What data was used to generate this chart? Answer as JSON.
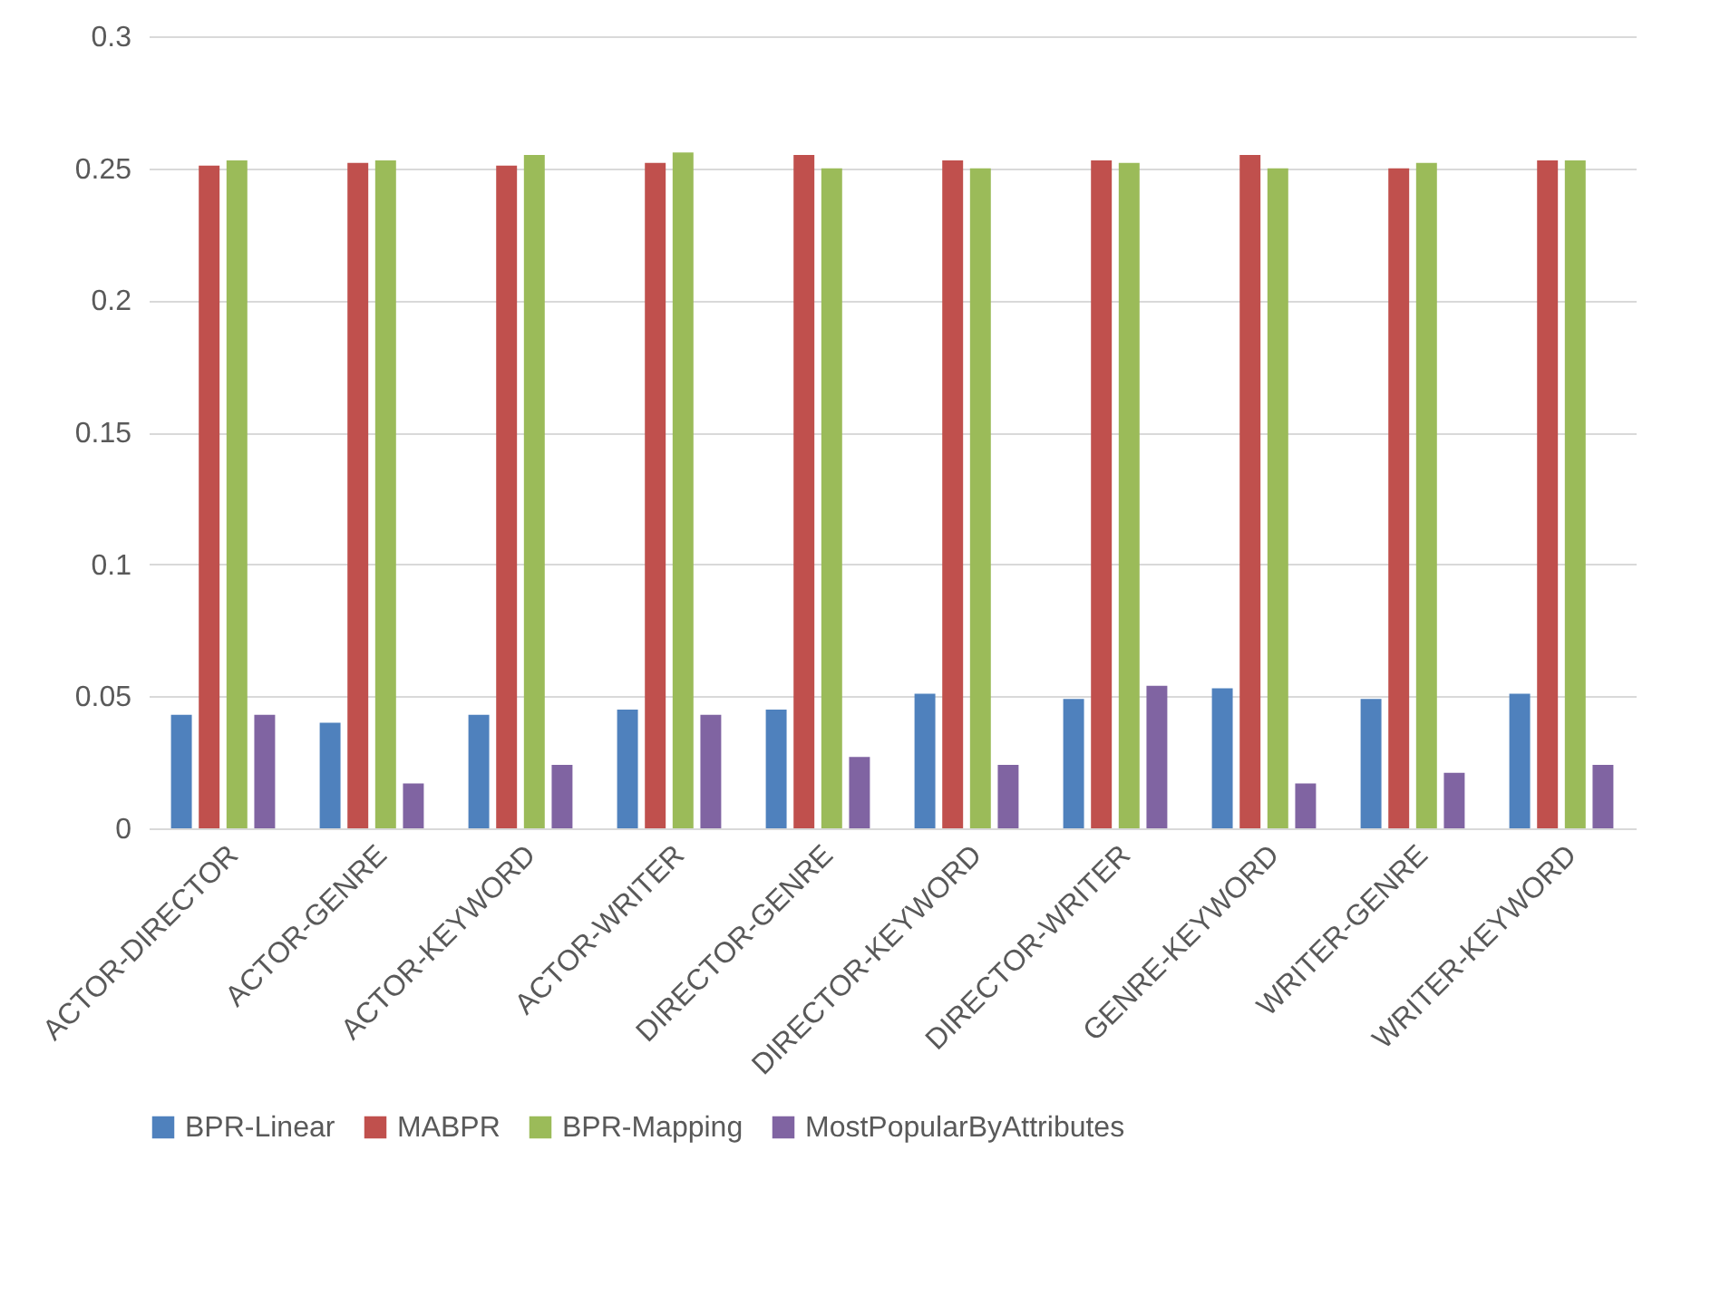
{
  "chart_data": {
    "type": "bar",
    "categories": [
      "ACTOR-DIRECTOR",
      "ACTOR-GENRE",
      "ACTOR-KEYWORD",
      "ACTOR-WRITER",
      "DIRECTOR-GENRE",
      "DIRECTOR-KEYWORD",
      "DIRECTOR-WRITER",
      "GENRE-KEYWORD",
      "WRITER-GENRE",
      "WRITER-KEYWORD"
    ],
    "series": [
      {
        "name": "BPR-Linear",
        "color": "#4f81bd",
        "values": [
          0.043,
          0.04,
          0.043,
          0.045,
          0.045,
          0.051,
          0.049,
          0.053,
          0.049,
          0.051
        ]
      },
      {
        "name": "MABPR",
        "color": "#c0504d",
        "values": [
          0.251,
          0.252,
          0.251,
          0.252,
          0.255,
          0.253,
          0.253,
          0.255,
          0.25,
          0.253
        ]
      },
      {
        "name": "BPR-Mapping",
        "color": "#9bbb59",
        "values": [
          0.253,
          0.253,
          0.255,
          0.256,
          0.25,
          0.25,
          0.252,
          0.25,
          0.252,
          0.253
        ]
      },
      {
        "name": "MostPopularByAttributes",
        "color": "#8064a2",
        "values": [
          0.043,
          0.017,
          0.024,
          0.043,
          0.027,
          0.024,
          0.054,
          0.017,
          0.021,
          0.024
        ]
      }
    ],
    "ylim": [
      0,
      0.3
    ],
    "yticks": [
      0,
      0.05,
      0.1,
      0.15,
      0.2,
      0.25,
      0.3
    ],
    "grid": "y",
    "legend": "bottom"
  }
}
